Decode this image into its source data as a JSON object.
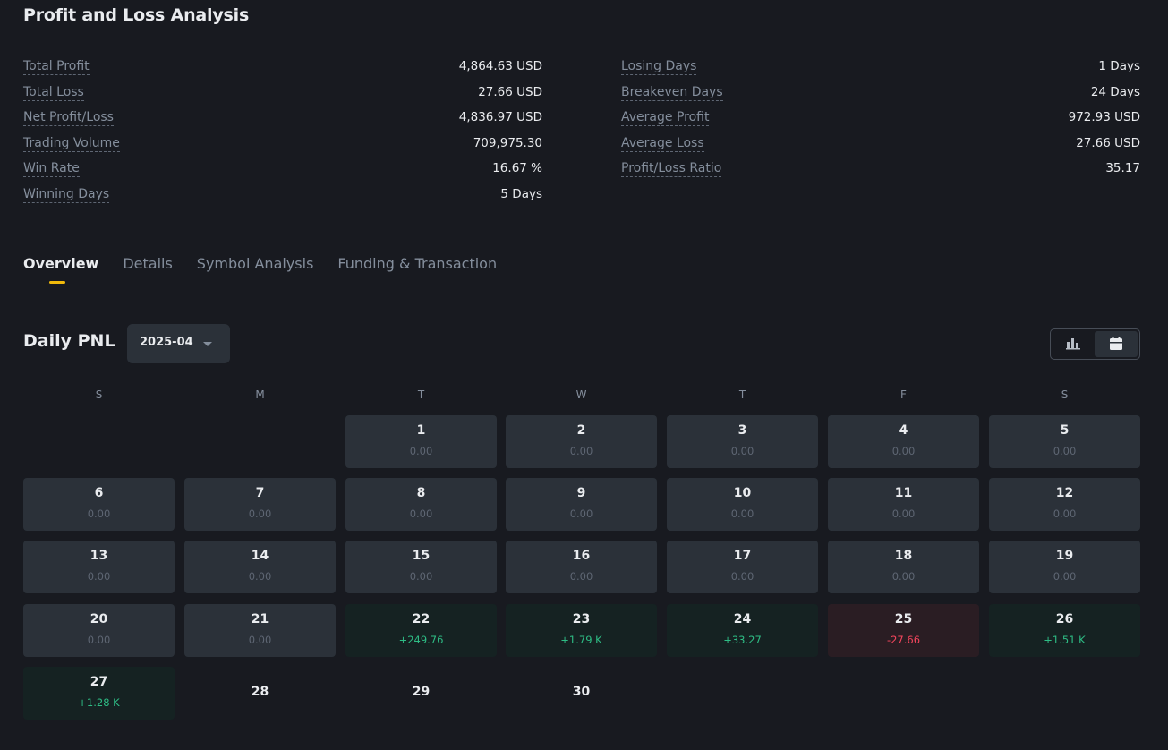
{
  "title": "Profit and Loss Analysis",
  "stats_left": [
    {
      "label": "Total Profit",
      "value": "4,864.63 USD"
    },
    {
      "label": "Total Loss",
      "value": "27.66 USD"
    },
    {
      "label": "Net Profit/Loss",
      "value": "4,836.97 USD"
    },
    {
      "label": "Trading Volume",
      "value": "709,975.30"
    },
    {
      "label": "Win Rate",
      "value": "16.67 %"
    },
    {
      "label": "Winning Days",
      "value": "5 Days"
    }
  ],
  "stats_right": [
    {
      "label": "Losing Days",
      "value": "1 Days"
    },
    {
      "label": "Breakeven Days",
      "value": "24 Days"
    },
    {
      "label": "Average Profit",
      "value": "972.93 USD"
    },
    {
      "label": "Average Loss",
      "value": "27.66 USD"
    },
    {
      "label": "Profit/Loss Ratio",
      "value": "35.17"
    }
  ],
  "tabs": [
    "Overview",
    "Details",
    "Symbol Analysis",
    "Funding & Transaction"
  ],
  "daily": {
    "title": "Daily PNL",
    "month": "2025-04"
  },
  "weekdays": [
    "S",
    "M",
    "T",
    "W",
    "T",
    "F",
    "S"
  ],
  "days": [
    {
      "day": "1",
      "pnl": "0.00",
      "status": "neutral"
    },
    {
      "day": "2",
      "pnl": "0.00",
      "status": "neutral"
    },
    {
      "day": "3",
      "pnl": "0.00",
      "status": "neutral"
    },
    {
      "day": "4",
      "pnl": "0.00",
      "status": "neutral"
    },
    {
      "day": "5",
      "pnl": "0.00",
      "status": "neutral"
    },
    {
      "day": "6",
      "pnl": "0.00",
      "status": "neutral"
    },
    {
      "day": "7",
      "pnl": "0.00",
      "status": "neutral"
    },
    {
      "day": "8",
      "pnl": "0.00",
      "status": "neutral"
    },
    {
      "day": "9",
      "pnl": "0.00",
      "status": "neutral"
    },
    {
      "day": "10",
      "pnl": "0.00",
      "status": "neutral"
    },
    {
      "day": "11",
      "pnl": "0.00",
      "status": "neutral"
    },
    {
      "day": "12",
      "pnl": "0.00",
      "status": "neutral"
    },
    {
      "day": "13",
      "pnl": "0.00",
      "status": "neutral"
    },
    {
      "day": "14",
      "pnl": "0.00",
      "status": "neutral"
    },
    {
      "day": "15",
      "pnl": "0.00",
      "status": "neutral"
    },
    {
      "day": "16",
      "pnl": "0.00",
      "status": "neutral"
    },
    {
      "day": "17",
      "pnl": "0.00",
      "status": "neutral"
    },
    {
      "day": "18",
      "pnl": "0.00",
      "status": "neutral"
    },
    {
      "day": "19",
      "pnl": "0.00",
      "status": "neutral"
    },
    {
      "day": "20",
      "pnl": "0.00",
      "status": "neutral"
    },
    {
      "day": "21",
      "pnl": "0.00",
      "status": "neutral"
    },
    {
      "day": "22",
      "pnl": "+249.76",
      "status": "profit"
    },
    {
      "day": "23",
      "pnl": "+1.79 K",
      "status": "profit"
    },
    {
      "day": "24",
      "pnl": "+33.27",
      "status": "profit"
    },
    {
      "day": "25",
      "pnl": "-27.66",
      "status": "loss"
    },
    {
      "day": "26",
      "pnl": "+1.51 K",
      "status": "profit"
    },
    {
      "day": "27",
      "pnl": "+1.28 K",
      "status": "profit"
    },
    {
      "day": "28",
      "pnl": "",
      "status": "empty"
    },
    {
      "day": "29",
      "pnl": "",
      "status": "empty"
    },
    {
      "day": "30",
      "pnl": "",
      "status": "empty"
    }
  ],
  "first_weekday": 2,
  "colors": {
    "accent": "#f0b90b",
    "profit": "#2ebd85",
    "loss": "#f6465d"
  }
}
